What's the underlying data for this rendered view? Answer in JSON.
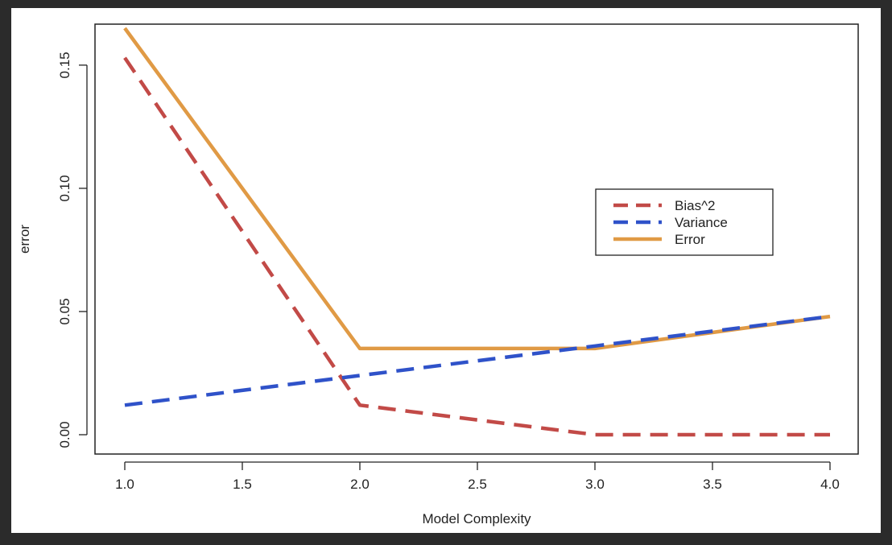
{
  "chart_data": {
    "type": "line",
    "title": "",
    "xlabel": "Model Complexity",
    "ylabel": "error",
    "x": [
      1.0,
      2.0,
      3.0,
      4.0
    ],
    "xlim": [
      1.0,
      4.0
    ],
    "ylim": [
      0.0,
      0.165
    ],
    "xticks": [
      1.0,
      1.5,
      2.0,
      2.5,
      3.0,
      3.5,
      4.0
    ],
    "xtick_labels": [
      "1.0",
      "1.5",
      "2.0",
      "2.5",
      "3.0",
      "3.5",
      "4.0"
    ],
    "yticks": [
      0.0,
      0.05,
      0.1,
      0.15
    ],
    "ytick_labels": [
      "0.00",
      "0.05",
      "0.10",
      "0.15"
    ],
    "grid": false,
    "legend_position": "right",
    "series": [
      {
        "name": "Bias^2",
        "values": [
          0.153,
          0.012,
          0.0,
          0.0
        ],
        "color": "#c24a47",
        "style": "dashed"
      },
      {
        "name": "Variance",
        "values": [
          0.012,
          0.024,
          0.036,
          0.048
        ],
        "color": "#2f52c9",
        "style": "dashed"
      },
      {
        "name": "Error",
        "values": [
          0.165,
          0.035,
          0.035,
          0.048
        ],
        "color": "#e09a45",
        "style": "solid"
      }
    ]
  }
}
